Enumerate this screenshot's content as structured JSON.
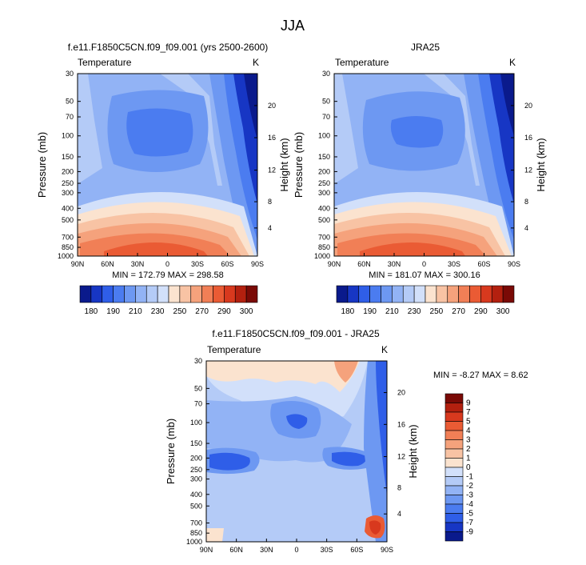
{
  "page_title": "JJA",
  "colors": {
    "cool": [
      "#0a1a8c",
      "#1736c4",
      "#2f5ee8",
      "#4b7cf0",
      "#6d98f2",
      "#92b3f5",
      "#b4cbf7",
      "#d2e0fa"
    ],
    "warm": [
      "#fbe3cf",
      "#f8c3a4",
      "#f5a27c",
      "#f17f56",
      "#ea5b34",
      "#d8391e",
      "#b3200f",
      "#7a0a06"
    ]
  },
  "chart_data": [
    {
      "id": "model",
      "type": "heatmap",
      "title": "f.e11.F1850C5CN.f09_f09.001 (yrs 2500-2600)",
      "left_label": "Temperature",
      "right_label": "K",
      "xlabel": "",
      "ylabel": "Pressure (mb)",
      "y2label": "Height (km)",
      "x_ticks": [
        "90N",
        "60N",
        "30N",
        "0",
        "30S",
        "60S",
        "90S"
      ],
      "pressure_ticks": [
        "30",
        "50",
        "70",
        "100",
        "150",
        "200",
        "250",
        "300",
        "400",
        "500",
        "700",
        "850",
        "1000"
      ],
      "height_ticks": [
        "4",
        "8",
        "12",
        "16",
        "20"
      ],
      "min_max": "MIN = 172.79  MAX = 298.58",
      "colorbar_labels": [
        "180",
        "190",
        "210",
        "230",
        "250",
        "270",
        "290",
        "300"
      ],
      "min": 172.79,
      "max": 298.58
    },
    {
      "id": "obs",
      "type": "heatmap",
      "title": "JRA25",
      "left_label": "Temperature",
      "right_label": "K",
      "xlabel": "",
      "ylabel": "Pressure (mb)",
      "y2label": "Height (km)",
      "x_ticks": [
        "90N",
        "60N",
        "30N",
        "0",
        "30S",
        "60S",
        "90S"
      ],
      "pressure_ticks": [
        "30",
        "50",
        "70",
        "100",
        "150",
        "200",
        "250",
        "300",
        "400",
        "500",
        "700",
        "850",
        "1000"
      ],
      "height_ticks": [
        "4",
        "8",
        "12",
        "16",
        "20"
      ],
      "min_max": "MIN = 181.07  MAX = 300.16",
      "colorbar_labels": [
        "180",
        "190",
        "210",
        "230",
        "250",
        "270",
        "290",
        "300"
      ],
      "min": 181.07,
      "max": 300.16
    },
    {
      "id": "diff",
      "type": "heatmap",
      "title": "f.e11.F1850C5CN.f09_f09.001 - JRA25",
      "left_label": "Temperature",
      "right_label": "K",
      "xlabel": "",
      "ylabel": "Pressure (mb)",
      "y2label": "Height (km)",
      "x_ticks": [
        "90N",
        "60N",
        "30N",
        "0",
        "30S",
        "60S",
        "90S"
      ],
      "pressure_ticks": [
        "30",
        "50",
        "70",
        "100",
        "150",
        "200",
        "250",
        "300",
        "400",
        "500",
        "700",
        "850",
        "1000"
      ],
      "height_ticks": [
        "4",
        "8",
        "12",
        "16",
        "20"
      ],
      "min_max": "MIN =  -8.27  MAX =   8.62",
      "colorbar_labels": [
        "9",
        "7",
        "5",
        "4",
        "3",
        "2",
        "1",
        "0",
        "-1",
        "-2",
        "-3",
        "-4",
        "-5",
        "-7",
        "-9"
      ],
      "min": -8.27,
      "max": 8.62
    }
  ]
}
